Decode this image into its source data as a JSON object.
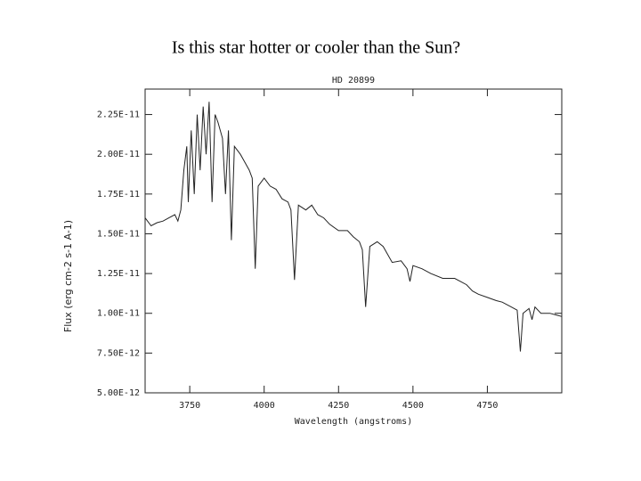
{
  "slide_title": "Is this star hotter or cooler than the Sun?",
  "chart_data": {
    "type": "line",
    "title": "HD 20899",
    "xlabel": "Wavelength (angstroms)",
    "ylabel": "Flux (erg cm-2 s-1 A-1)",
    "color": "#222222",
    "x": [
      3600,
      3620,
      3640,
      3660,
      3680,
      3700,
      3710,
      3720,
      3730,
      3740,
      3745,
      3755,
      3765,
      3775,
      3785,
      3795,
      3805,
      3815,
      3825,
      3835,
      3845,
      3860,
      3870,
      3880,
      3890,
      3900,
      3920,
      3935,
      3950,
      3960,
      3970,
      3980,
      4000,
      4020,
      4040,
      4060,
      4080,
      4090,
      4102,
      4115,
      4140,
      4160,
      4180,
      4200,
      4220,
      4250,
      4280,
      4300,
      4320,
      4330,
      4341,
      4355,
      4380,
      4400,
      4430,
      4460,
      4480,
      4490,
      4500,
      4530,
      4560,
      4600,
      4640,
      4680,
      4700,
      4720,
      4750,
      4780,
      4800,
      4830,
      4850,
      4861,
      4870,
      4890,
      4900,
      4910,
      4930,
      4960,
      4980,
      5000
    ],
    "values": [
      1.6e-11,
      1.55e-11,
      1.57e-11,
      1.58e-11,
      1.6e-11,
      1.62e-11,
      1.58e-11,
      1.65e-11,
      1.9e-11,
      2.05e-11,
      1.7e-11,
      2.15e-11,
      1.75e-11,
      2.25e-11,
      1.9e-11,
      2.3e-11,
      2e-11,
      2.33e-11,
      1.7e-11,
      2.25e-11,
      2.2e-11,
      2.1e-11,
      1.75e-11,
      2.15e-11,
      1.46e-11,
      2.05e-11,
      2e-11,
      1.95e-11,
      1.9e-11,
      1.85e-11,
      1.28e-11,
      1.8e-11,
      1.85e-11,
      1.8e-11,
      1.78e-11,
      1.72e-11,
      1.7e-11,
      1.65e-11,
      1.21e-11,
      1.68e-11,
      1.65e-11,
      1.68e-11,
      1.62e-11,
      1.6e-11,
      1.56e-11,
      1.52e-11,
      1.52e-11,
      1.48e-11,
      1.45e-11,
      1.4e-11,
      1.04e-11,
      1.42e-11,
      1.45e-11,
      1.42e-11,
      1.32e-11,
      1.33e-11,
      1.28e-11,
      1.2e-11,
      1.3e-11,
      1.28e-11,
      1.25e-11,
      1.22e-11,
      1.22e-11,
      1.18e-11,
      1.14e-11,
      1.12e-11,
      1.1e-11,
      1.08e-11,
      1.07e-11,
      1.04e-11,
      1.02e-11,
      7.6e-12,
      1e-11,
      1.03e-11,
      9.6e-12,
      1.04e-11,
      1e-11,
      1e-11,
      9.9e-12,
      9.8e-12
    ],
    "xlim": [
      3600,
      5000
    ],
    "xticks": [
      3750,
      4000,
      4250,
      4500,
      4750
    ],
    "ylim": [
      5e-12,
      2.41e-11
    ],
    "yticks": [
      {
        "value": 5e-12,
        "label": "5.00E-12"
      },
      {
        "value": 7.5e-12,
        "label": "7.50E-12"
      },
      {
        "value": 1e-11,
        "label": "1.00E-11"
      },
      {
        "value": 1.25e-11,
        "label": "1.25E-11"
      },
      {
        "value": 1.5e-11,
        "label": "1.50E-11"
      },
      {
        "value": 1.75e-11,
        "label": "1.75E-11"
      },
      {
        "value": 2e-11,
        "label": "2.00E-11"
      },
      {
        "value": 2.25e-11,
        "label": "2.25E-11"
      }
    ]
  }
}
